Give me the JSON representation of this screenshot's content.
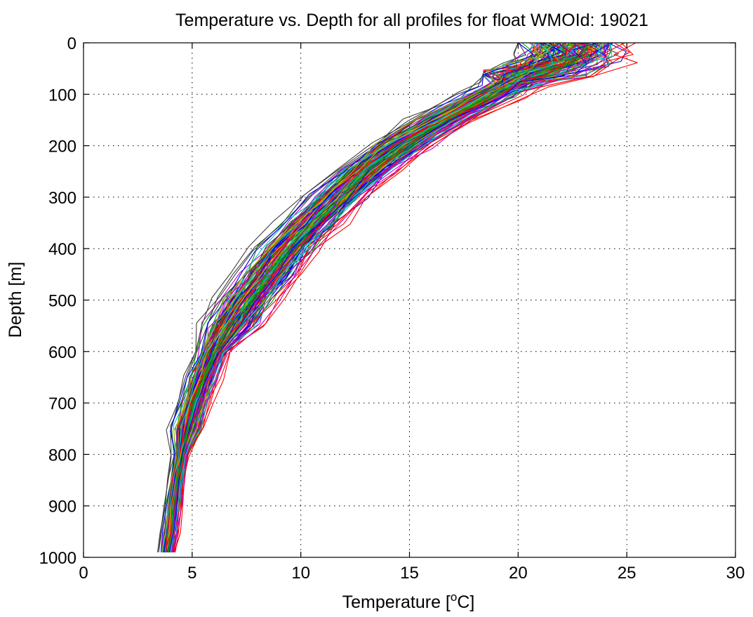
{
  "chart_data": {
    "type": "line",
    "title": "Temperature vs. Depth for all profiles for float WMOId: 19021",
    "xlabel_main": "Temperature [",
    "xlabel_sup": "o",
    "xlabel_end": "C]",
    "ylabel": "Depth [m]",
    "xlim": [
      0,
      30
    ],
    "ylim": [
      0,
      1000
    ],
    "y_reversed": true,
    "grid": true,
    "x_ticks": [
      0,
      5,
      10,
      15,
      20,
      25,
      30
    ],
    "x_tick_labels": [
      "0",
      "5",
      "10",
      "15",
      "20",
      "25",
      "30"
    ],
    "y_ticks": [
      0,
      100,
      200,
      300,
      400,
      500,
      600,
      700,
      800,
      900,
      1000
    ],
    "y_tick_labels": [
      "0",
      "100",
      "200",
      "300",
      "400",
      "500",
      "600",
      "700",
      "800",
      "900",
      "1000"
    ],
    "depths": [
      0,
      20,
      40,
      60,
      80,
      100,
      150,
      200,
      250,
      300,
      350,
      400,
      450,
      500,
      550,
      600,
      650,
      700,
      750,
      800,
      850,
      900,
      950,
      990
    ],
    "mean_profile": [
      22.5,
      22.3,
      21.8,
      20.9,
      19.8,
      18.8,
      16.5,
      14.6,
      13.0,
      11.7,
      10.5,
      9.4,
      8.5,
      7.6,
      6.8,
      6.0,
      5.5,
      5.1,
      4.8,
      4.5,
      4.3,
      4.15,
      4.0,
      3.85
    ],
    "series_count": 160,
    "series_colors": [
      "#0000ff",
      "#00a000",
      "#ff0000",
      "#00c0c0",
      "#c000c0",
      "#b0b000",
      "#404040"
    ]
  }
}
